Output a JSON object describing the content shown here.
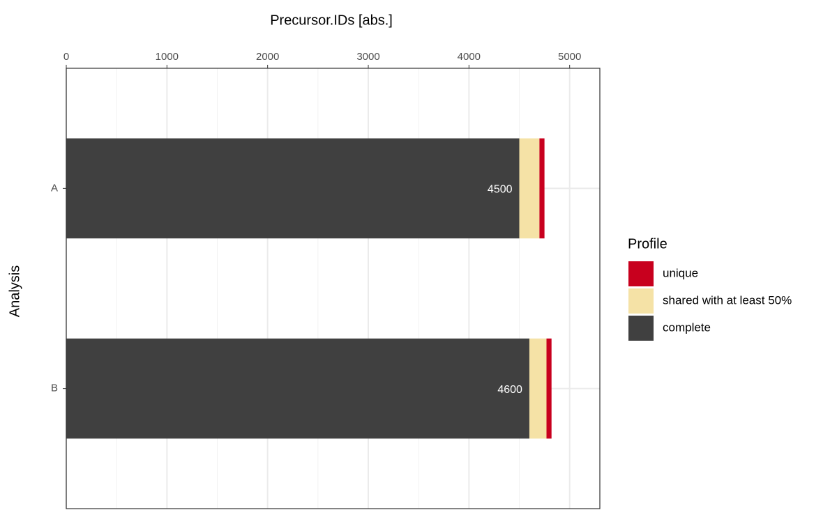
{
  "chart_data": {
    "type": "stacked_barh",
    "xlabel": "Precursor.IDs [abs.]",
    "ylabel": "Analysis",
    "categories": [
      "A",
      "B"
    ],
    "series": [
      {
        "name": "unique",
        "color": "#c8001e",
        "values": [
          50,
          50
        ]
      },
      {
        "name": "shared with at least 50%",
        "color": "#f5e2a6",
        "values": [
          200,
          170
        ]
      },
      {
        "name": "complete",
        "color": "#404040",
        "values": [
          4500,
          4600
        ],
        "show_labels": true
      }
    ],
    "xlim": [
      0,
      5300
    ],
    "xticks": [
      0,
      1000,
      2000,
      3000,
      4000,
      5000
    ],
    "legend_title": "Profile",
    "legend": "right",
    "grid": true
  }
}
